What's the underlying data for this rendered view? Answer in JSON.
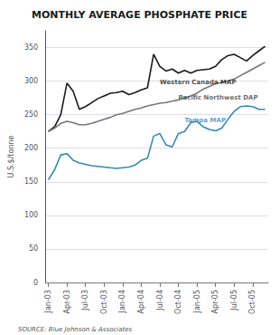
{
  "chart_data": {
    "type": "line",
    "title": "MONTHLY AVERAGE PHOSPHATE PRICE",
    "ylabel": "U.S.$/tonne",
    "source": "SOURCE: Blue Johnson & Associates",
    "categories": [
      "Jan-03",
      null,
      null,
      "Apr-03",
      null,
      null,
      "Jul-03",
      null,
      null,
      "Oct-03",
      null,
      null,
      "Jan-04",
      null,
      null,
      "Apr-04",
      null,
      null,
      "Jul-04",
      null,
      null,
      "Oct-04",
      null,
      null,
      "Jan-05",
      null,
      null,
      "Apr-05",
      null,
      null,
      "Jul-05",
      null,
      null,
      "Oct-05",
      null,
      null
    ],
    "series": [
      {
        "name": "Western Canada MAP",
        "color": "#1a1a1a",
        "values": [
          225,
          232,
          250,
          297,
          285,
          258,
          262,
          268,
          274,
          278,
          282,
          283,
          285,
          280,
          283,
          287,
          290,
          340,
          322,
          315,
          318,
          312,
          316,
          312,
          316,
          317,
          318,
          322,
          332,
          338,
          340,
          335,
          330,
          338,
          345,
          352
        ]
      },
      {
        "name": "Pacific Northwest DAP",
        "color": "#777777",
        "values": [
          225,
          230,
          237,
          240,
          238,
          235,
          235,
          237,
          240,
          243,
          246,
          250,
          252,
          255,
          258,
          260,
          263,
          265,
          267,
          268,
          270,
          272,
          275,
          278,
          282,
          288,
          292,
          296,
          298,
          300,
          303,
          308,
          313,
          318,
          323,
          328
        ]
      },
      {
        "name": "Tampa MAP",
        "color": "#3388bb",
        "values": [
          153,
          168,
          190,
          192,
          182,
          178,
          176,
          174,
          173,
          172,
          171,
          170,
          171,
          172,
          175,
          182,
          185,
          218,
          222,
          205,
          202,
          222,
          225,
          238,
          240,
          232,
          228,
          226,
          230,
          243,
          255,
          262,
          263,
          262,
          258,
          258
        ]
      }
    ],
    "annotations": [
      {
        "text": "Western Canada MAP",
        "x": 18,
        "y": 294,
        "color": "#1a1a1a"
      },
      {
        "text": "Pacific Northwest DAP",
        "x": 21,
        "y": 270,
        "color": "#444444"
      },
      {
        "text": "Tampa MAP",
        "x": 22,
        "y": 237,
        "color": "#3388bb"
      }
    ],
    "ylim": [
      0,
      375
    ],
    "yticks": [
      0,
      50,
      100,
      150,
      200,
      250,
      300,
      350
    ],
    "grid": true
  }
}
